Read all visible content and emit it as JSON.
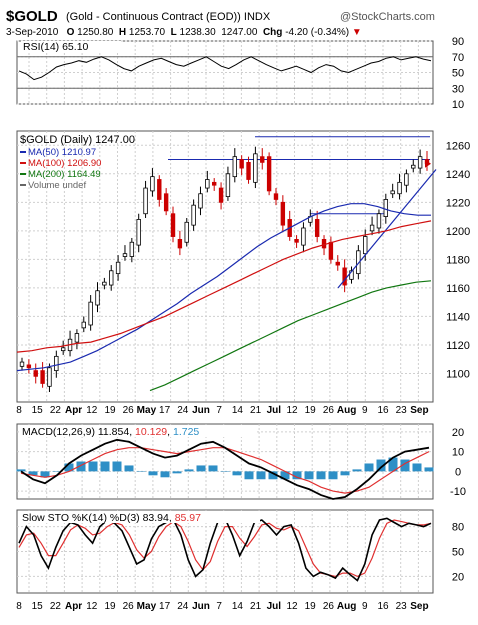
{
  "header": {
    "symbol": "$GOLD",
    "description": "(Gold - Continuous Contract (EOD)) INDX",
    "brand": "@StockCharts.com",
    "date": "3-Sep-2010",
    "open_label": "O",
    "open": "1250.80",
    "high_label": "H",
    "high": "1253.70",
    "low_label": "L",
    "low": "1238.30",
    "close": "1247.00",
    "chg_label": "Chg",
    "chg": "-4.20 (-0.34%)",
    "chg_arrow": "▼"
  },
  "colors": {
    "up": "#000000",
    "down": "#cc0000",
    "ma50": "#1a2ab0",
    "ma100": "#d01010",
    "ma200": "#117711",
    "macd_hist": "#2e8fc6",
    "signal": "#e03030",
    "grid": "#cfcfcf"
  },
  "chart_data": [
    {
      "type": "line",
      "title": "RSI(14) 65.10",
      "series": [
        {
          "name": "RSI(14)",
          "values": [
            52,
            48,
            41,
            44,
            50,
            57,
            60,
            62,
            65,
            63,
            67,
            70,
            66,
            60,
            55,
            52,
            58,
            62,
            66,
            68,
            64,
            60,
            58,
            62,
            66,
            70,
            64,
            58,
            55,
            60,
            66,
            70,
            65,
            60,
            56,
            52,
            55,
            58,
            54,
            50,
            56,
            60,
            58,
            52,
            50,
            54,
            58,
            62,
            64,
            68,
            70,
            66,
            68,
            70,
            67,
            65
          ]
        }
      ],
      "ylim": [
        10,
        90
      ],
      "y_ticks": [
        "90",
        "70",
        "50",
        "30",
        "10"
      ],
      "levels": [
        70,
        30
      ]
    },
    {
      "type": "candlestick",
      "title": "$GOLD (Daily) 1247.00",
      "ylim": [
        1080,
        1270
      ],
      "y_ticks": [
        "1260",
        "1240",
        "1220",
        "1200",
        "1180",
        "1160",
        "1140",
        "1120",
        "1100"
      ],
      "x_ticks": [
        "8",
        "15",
        "22",
        "Apr",
        "12",
        "19",
        "26",
        "May",
        "17",
        "24",
        "Jun",
        "7",
        "14",
        "21",
        "Jul",
        "12",
        "19",
        "26",
        "Aug",
        "9",
        "16",
        "23",
        "Sep"
      ],
      "close": [
        1108,
        1104,
        1098,
        1093,
        1104,
        1112,
        1118,
        1124,
        1128,
        1136,
        1150,
        1158,
        1164,
        1172,
        1178,
        1184,
        1192,
        1208,
        1230,
        1238,
        1222,
        1214,
        1196,
        1188,
        1206,
        1218,
        1226,
        1236,
        1232,
        1220,
        1240,
        1252,
        1244,
        1236,
        1254,
        1248,
        1228,
        1222,
        1204,
        1196,
        1192,
        1202,
        1210,
        1196,
        1188,
        1180,
        1176,
        1162,
        1172,
        1186,
        1196,
        1204,
        1212,
        1222,
        1228,
        1234,
        1240,
        1246,
        1252,
        1247
      ],
      "series": [
        {
          "name": "MA(50) 1210.97",
          "values": [
            1102,
            1103,
            1104,
            1106,
            1108,
            1112,
            1116,
            1121,
            1126,
            1131,
            1137,
            1143,
            1149,
            1156,
            1162,
            1168,
            1175,
            1182,
            1189,
            1195,
            1200,
            1205,
            1210,
            1214,
            1217,
            1219,
            1219,
            1217,
            1214,
            1212,
            1211,
            1211
          ]
        },
        {
          "name": "MA(100) 1206.90",
          "values": [
            1115,
            1116,
            1118,
            1119,
            1121,
            1122,
            1125,
            1128,
            1132,
            1136,
            1140,
            1145,
            1150,
            1155,
            1160,
            1165,
            1170,
            1175,
            1180,
            1184,
            1188,
            1191,
            1194,
            1196,
            1198,
            1200,
            1203,
            1205,
            1207
          ]
        },
        {
          "name": "MA(200) 1164.49",
          "values": [
            1088,
            1092,
            1097,
            1102,
            1107,
            1112,
            1117,
            1122,
            1127,
            1132,
            1137,
            1141,
            1145,
            1149,
            1153,
            1157,
            1160,
            1162,
            1164,
            1165
          ]
        },
        {
          "name": "Volume undef",
          "values": []
        }
      ]
    },
    {
      "type": "line",
      "title": "MACD(12,26,9) 11.854, 10.129, 1.725",
      "series": [
        {
          "name": "MACD(12,26,9) 11.854",
          "values": [
            0,
            -4,
            -6,
            -2,
            4,
            8,
            11,
            14,
            16,
            15,
            12,
            9,
            7,
            8,
            11,
            14,
            15,
            12,
            8,
            4,
            2,
            -1,
            -4,
            -7,
            -9,
            -12,
            -14,
            -13,
            -9,
            -4,
            2,
            7,
            10,
            11,
            12
          ]
        },
        {
          "name": "10.129",
          "values": [
            -1,
            -2,
            -3,
            -2,
            0,
            3,
            6,
            9,
            11,
            12,
            12,
            11,
            10,
            9,
            10,
            11,
            12,
            12,
            10,
            8,
            6,
            3,
            0,
            -3,
            -5,
            -8,
            -10,
            -11,
            -10,
            -8,
            -4,
            0,
            4,
            7,
            10
          ]
        },
        {
          "name": "1.725",
          "values": [
            1,
            -2,
            -3,
            0,
            4,
            5,
            5,
            5,
            5,
            3,
            0,
            -2,
            -3,
            -1,
            1,
            3,
            3,
            0,
            -2,
            -4,
            -4,
            -4,
            -4,
            -4,
            -4,
            -4,
            -4,
            -2,
            1,
            4,
            6,
            7,
            6,
            4,
            2
          ]
        }
      ],
      "ylim": [
        -14,
        24
      ],
      "y_ticks": [
        "20",
        "10",
        "0",
        "-10"
      ]
    },
    {
      "type": "line",
      "title": "Slow STO %K(14) %D(3) 83.94, 85.97",
      "series": [
        {
          "name": "%K(14) 83.94",
          "values": [
            60,
            80,
            70,
            45,
            30,
            55,
            75,
            85,
            82,
            70,
            60,
            80,
            88,
            84,
            75,
            55,
            35,
            40,
            65,
            80,
            85,
            88,
            70,
            40,
            20,
            28,
            60,
            85,
            90,
            70,
            45,
            62,
            85,
            88,
            80,
            70,
            80,
            82,
            60,
            30,
            20,
            25,
            22,
            18,
            30,
            22,
            15,
            35,
            70,
            88,
            90,
            85,
            80,
            84,
            82,
            80,
            84
          ]
        },
        {
          "name": "%D(3) 85.97",
          "values": [
            55,
            70,
            72,
            60,
            45,
            45,
            60,
            76,
            82,
            78,
            70,
            72,
            80,
            85,
            82,
            70,
            52,
            42,
            50,
            68,
            80,
            86,
            80,
            62,
            40,
            28,
            38,
            62,
            80,
            80,
            66,
            56,
            68,
            82,
            84,
            78,
            76,
            80,
            75,
            55,
            35,
            24,
            22,
            20,
            24,
            24,
            20,
            24,
            42,
            66,
            84,
            88,
            86,
            84,
            82,
            82,
            84
          ]
        }
      ],
      "ylim": [
        0,
        100
      ],
      "y_ticks": [
        "80",
        "50",
        "20"
      ],
      "levels": [
        80,
        50,
        20
      ]
    }
  ]
}
